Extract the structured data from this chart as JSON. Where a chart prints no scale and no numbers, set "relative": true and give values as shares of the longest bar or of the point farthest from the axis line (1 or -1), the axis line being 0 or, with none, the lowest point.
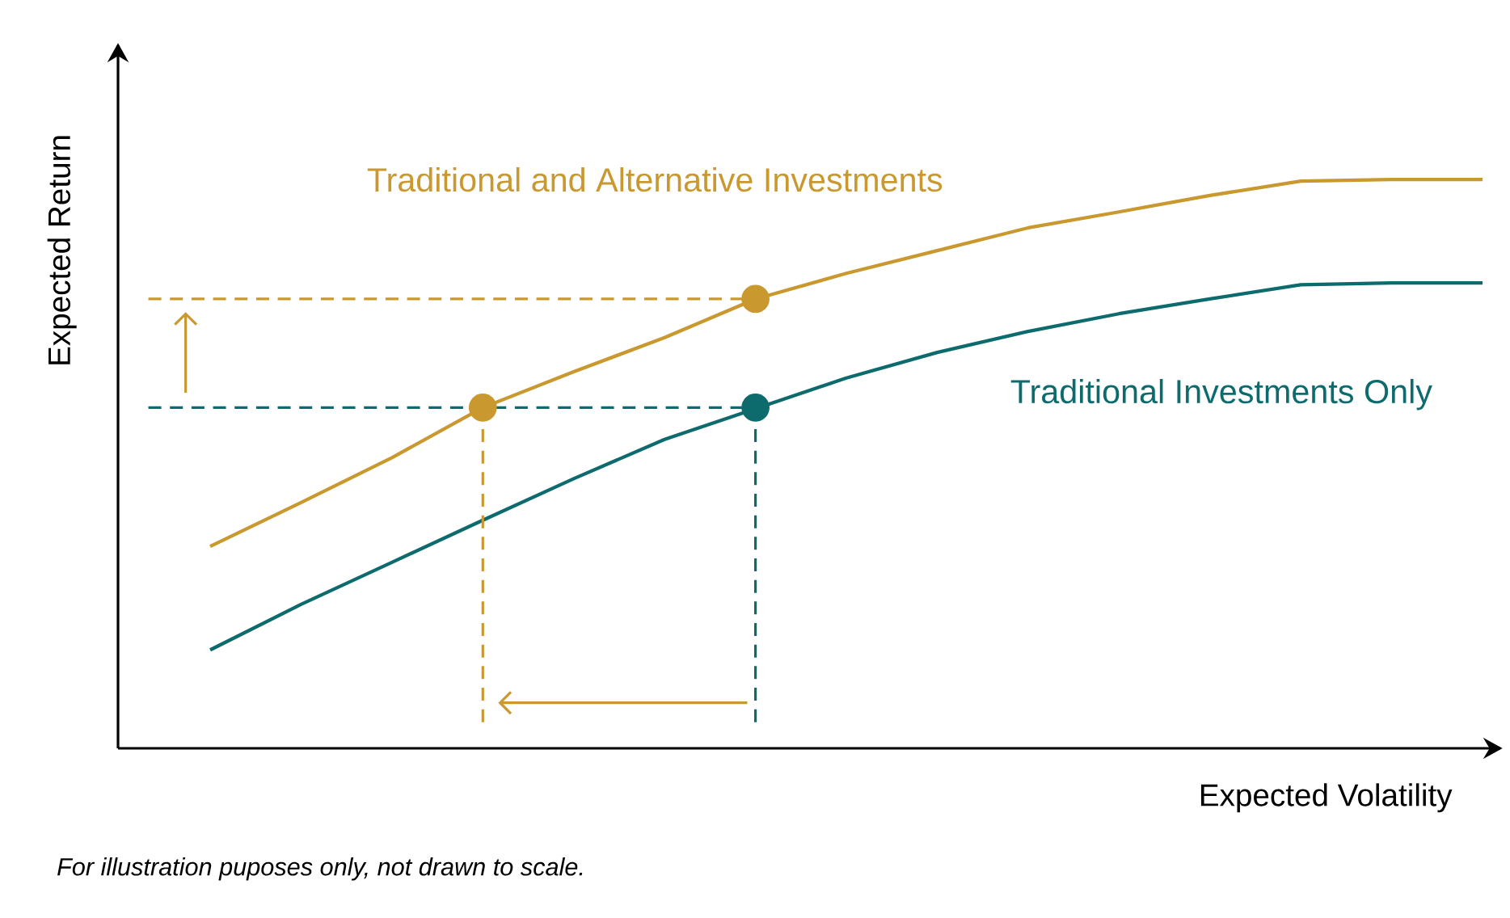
{
  "chart_data": {
    "type": "line",
    "xlabel": "Expected Volatility",
    "ylabel": "Expected Return",
    "annotations": [
      "For illustration puposes only, not drawn to scale."
    ],
    "relative": true,
    "tick_labels": false,
    "categories": [
      null,
      null,
      null,
      null,
      null,
      null,
      null,
      null,
      null,
      null,
      null,
      null,
      null,
      null,
      null
    ],
    "series": [
      {
        "name": "Traditional and Alternative Investments",
        "color": "#c9982f",
        "values": [
          0.355,
          0.432,
          0.511,
          0.599,
          0.662,
          0.722,
          0.79,
          0.835,
          0.875,
          0.915,
          0.943,
          0.972,
          0.997,
          1,
          1
        ]
      },
      {
        "name": "Traditional Investments Only",
        "color": "#0d6b6e",
        "values": [
          0.173,
          0.253,
          0.327,
          0.401,
          0.474,
          0.543,
          0.597,
          0.651,
          0.696,
          0.733,
          0.764,
          0.79,
          0.815,
          0.818,
          0.818
        ]
      }
    ],
    "ref_lines": [
      {
        "axis": "y",
        "value": 0.79,
        "color": "#c9982f",
        "line_style": "dashed"
      },
      {
        "axis": "y",
        "value": 0.599,
        "color": "#0d6b6e",
        "line_style": "dashed"
      }
    ]
  }
}
